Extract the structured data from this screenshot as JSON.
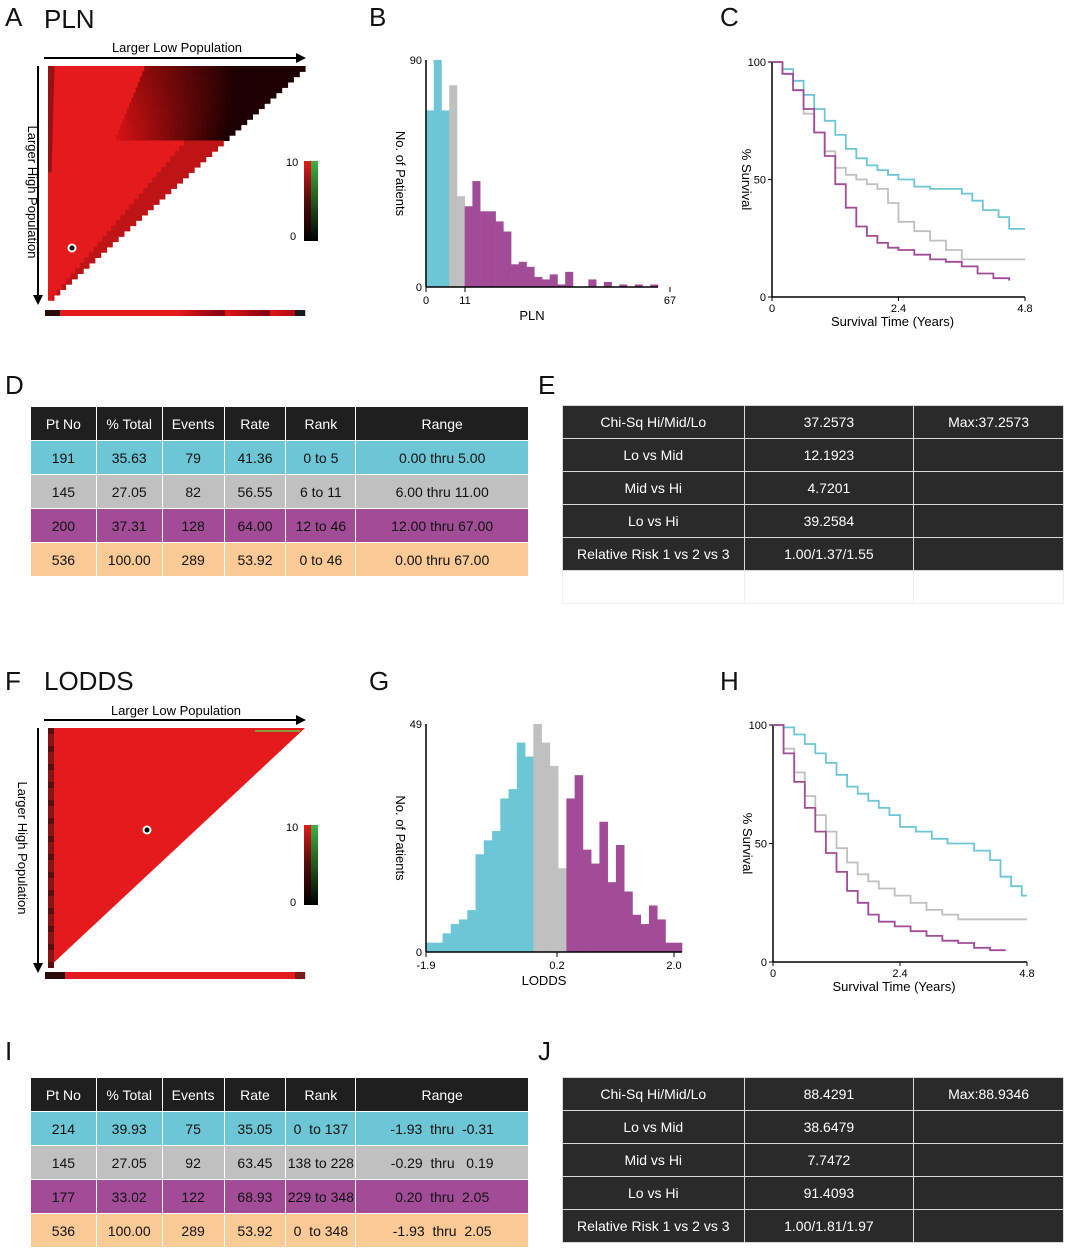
{
  "colors": {
    "lo": "#6cc6d6",
    "mid": "#c0c0c0",
    "hi": "#a24c98",
    "total": "#f9c996",
    "heat_red": "#e41a1c",
    "header": "#1f1f1f"
  },
  "panel_labels": {
    "A": "A",
    "B": "B",
    "C": "C",
    "D": "D",
    "E": "E",
    "F": "F",
    "G": "G",
    "H": "H",
    "I": "I",
    "J": "J"
  },
  "pln": {
    "title": "PLN",
    "heatmap": {
      "top_label": "Larger Low Population",
      "side_label": "Larger High Population",
      "scale_max": "10",
      "scale_min": "0"
    },
    "chart_data": {
      "type": "bar",
      "title": "",
      "xlabel": "PLN",
      "ylabel": "No. of Patients",
      "xticks": [
        "0",
        "11",
        "67"
      ],
      "yticks": [
        "0",
        "90"
      ],
      "ylim": [
        0,
        90
      ],
      "bins": [
        {
          "group": "lo",
          "value": 70
        },
        {
          "group": "lo",
          "value": 90
        },
        {
          "group": "lo",
          "value": 70
        },
        {
          "group": "mid",
          "value": 80
        },
        {
          "group": "mid",
          "value": 36
        },
        {
          "group": "hi",
          "value": 32
        },
        {
          "group": "hi",
          "value": 42
        },
        {
          "group": "hi",
          "value": 30
        },
        {
          "group": "hi",
          "value": 30
        },
        {
          "group": "hi",
          "value": 26
        },
        {
          "group": "hi",
          "value": 22
        },
        {
          "group": "hi",
          "value": 9
        },
        {
          "group": "hi",
          "value": 10
        },
        {
          "group": "hi",
          "value": 8
        },
        {
          "group": "hi",
          "value": 4
        },
        {
          "group": "hi",
          "value": 3
        },
        {
          "group": "hi",
          "value": 5
        },
        {
          "group": "hi",
          "value": 1
        },
        {
          "group": "hi",
          "value": 6
        },
        {
          "group": "hi",
          "value": 0
        },
        {
          "group": "hi",
          "value": 0
        },
        {
          "group": "hi",
          "value": 3
        },
        {
          "group": "hi",
          "value": 0
        },
        {
          "group": "hi",
          "value": 2
        },
        {
          "group": "hi",
          "value": 0
        },
        {
          "group": "hi",
          "value": 1
        },
        {
          "group": "hi",
          "value": 0
        },
        {
          "group": "hi",
          "value": 1
        },
        {
          "group": "hi",
          "value": 0
        },
        {
          "group": "hi",
          "value": 1
        }
      ]
    },
    "survival": {
      "type": "line",
      "xlabel": "Survival Time (Years)",
      "ylabel": "% Survival",
      "xticks": [
        "0",
        "2.4",
        "4.8"
      ],
      "yticks": [
        "0",
        "50",
        "100"
      ],
      "xlim": [
        0,
        4.8
      ],
      "ylim": [
        0,
        100
      ],
      "series": [
        {
          "name": "Lo",
          "color": "#6cc6d6",
          "points": [
            [
              0,
              100
            ],
            [
              0.2,
              97
            ],
            [
              0.4,
              92
            ],
            [
              0.6,
              86
            ],
            [
              0.8,
              80
            ],
            [
              1.0,
              75
            ],
            [
              1.2,
              69
            ],
            [
              1.4,
              63
            ],
            [
              1.6,
              59
            ],
            [
              1.8,
              56
            ],
            [
              2.0,
              54
            ],
            [
              2.2,
              52
            ],
            [
              2.4,
              50
            ],
            [
              2.7,
              47
            ],
            [
              3.0,
              46
            ],
            [
              3.3,
              46
            ],
            [
              3.6,
              44
            ],
            [
              3.8,
              41
            ],
            [
              4.0,
              37
            ],
            [
              4.3,
              34
            ],
            [
              4.5,
              29
            ],
            [
              4.8,
              29
            ]
          ]
        },
        {
          "name": "Mid",
          "color": "#c0c0c0",
          "points": [
            [
              0,
              100
            ],
            [
              0.2,
              95
            ],
            [
              0.4,
              88
            ],
            [
              0.6,
              78
            ],
            [
              0.8,
              70
            ],
            [
              1.0,
              62
            ],
            [
              1.2,
              55
            ],
            [
              1.4,
              52
            ],
            [
              1.6,
              50
            ],
            [
              1.8,
              48
            ],
            [
              2.0,
              46
            ],
            [
              2.2,
              40
            ],
            [
              2.4,
              32
            ],
            [
              2.7,
              28
            ],
            [
              3.0,
              24
            ],
            [
              3.3,
              20
            ],
            [
              3.6,
              16
            ],
            [
              4.0,
              16
            ],
            [
              4.3,
              16
            ],
            [
              4.8,
              16
            ]
          ]
        },
        {
          "name": "Hi",
          "color": "#a24c98",
          "points": [
            [
              0,
              100
            ],
            [
              0.2,
              95
            ],
            [
              0.4,
              88
            ],
            [
              0.6,
              80
            ],
            [
              0.8,
              70
            ],
            [
              1.0,
              60
            ],
            [
              1.2,
              48
            ],
            [
              1.4,
              38
            ],
            [
              1.6,
              30
            ],
            [
              1.8,
              26
            ],
            [
              2.0,
              23
            ],
            [
              2.2,
              21
            ],
            [
              2.4,
              20
            ],
            [
              2.7,
              18
            ],
            [
              3.0,
              16
            ],
            [
              3.3,
              15
            ],
            [
              3.6,
              13
            ],
            [
              3.9,
              10
            ],
            [
              4.2,
              8
            ],
            [
              4.5,
              7
            ]
          ]
        }
      ]
    },
    "table": {
      "headers": [
        "Pt No",
        "% Total",
        "Events",
        "Rate",
        "Rank",
        "Range"
      ],
      "rows": [
        {
          "group": "lo",
          "cells": [
            "191",
            "35.63",
            "79",
            "41.36",
            "0 to 5",
            "0.00 thru 5.00"
          ]
        },
        {
          "group": "mid",
          "cells": [
            "145",
            "27.05",
            "82",
            "56.55",
            "6 to 11",
            "6.00 thru 11.00"
          ]
        },
        {
          "group": "hi",
          "cells": [
            "200",
            "37.31",
            "128",
            "64.00",
            "12 to 46",
            "12.00 thru 67.00"
          ]
        },
        {
          "group": "total",
          "cells": [
            "536",
            "100.00",
            "289",
            "53.92",
            "0 to 46",
            "0.00 thru 67.00"
          ]
        }
      ]
    },
    "chisq": {
      "rows": [
        [
          "Chi-Sq Hi/Mid/Lo",
          "37.2573",
          "Max:37.2573"
        ],
        [
          "Lo vs Mid",
          "12.1923",
          ""
        ],
        [
          "Mid vs Hi",
          "4.7201",
          ""
        ],
        [
          "Lo vs Hi",
          "39.2584",
          ""
        ],
        [
          "Relative Risk 1 vs 2 vs 3",
          "1.00/1.37/1.55",
          ""
        ]
      ]
    }
  },
  "lodds": {
    "title": "LODDS",
    "heatmap": {
      "top_label": "Larger Low Population",
      "side_label": "Larger High Population",
      "scale_max": "10",
      "scale_min": "0"
    },
    "chart_data": {
      "type": "bar",
      "title": "",
      "xlabel": "LODDS",
      "ylabel": "No. of Patients",
      "xticks": [
        "-1.9",
        "0.2",
        "2.0"
      ],
      "yticks": [
        "0",
        "49"
      ],
      "ylim": [
        0,
        49
      ],
      "bins": [
        {
          "group": "lo",
          "value": 2
        },
        {
          "group": "lo",
          "value": 2
        },
        {
          "group": "lo",
          "value": 4
        },
        {
          "group": "lo",
          "value": 6
        },
        {
          "group": "lo",
          "value": 7
        },
        {
          "group": "lo",
          "value": 9
        },
        {
          "group": "lo",
          "value": 21
        },
        {
          "group": "lo",
          "value": 24
        },
        {
          "group": "lo",
          "value": 26
        },
        {
          "group": "lo",
          "value": 33
        },
        {
          "group": "lo",
          "value": 35
        },
        {
          "group": "lo",
          "value": 45
        },
        {
          "group": "lo",
          "value": 42
        },
        {
          "group": "mid",
          "value": 49
        },
        {
          "group": "mid",
          "value": 45
        },
        {
          "group": "mid",
          "value": 40
        },
        {
          "group": "mid",
          "value": 18
        },
        {
          "group": "hi",
          "value": 33
        },
        {
          "group": "hi",
          "value": 38
        },
        {
          "group": "hi",
          "value": 22
        },
        {
          "group": "hi",
          "value": 19
        },
        {
          "group": "hi",
          "value": 28
        },
        {
          "group": "hi",
          "value": 15
        },
        {
          "group": "hi",
          "value": 23
        },
        {
          "group": "hi",
          "value": 13
        },
        {
          "group": "hi",
          "value": 8
        },
        {
          "group": "hi",
          "value": 6
        },
        {
          "group": "hi",
          "value": 10
        },
        {
          "group": "hi",
          "value": 7
        },
        {
          "group": "hi",
          "value": 2
        },
        {
          "group": "hi",
          "value": 2
        }
      ]
    },
    "survival": {
      "type": "line",
      "xlabel": "Survival Time (Years)",
      "ylabel": "% Survival",
      "xticks": [
        "0",
        "2.4",
        "4.8"
      ],
      "yticks": [
        "0",
        "50",
        "100"
      ],
      "xlim": [
        0,
        4.8
      ],
      "ylim": [
        0,
        100
      ],
      "series": [
        {
          "name": "Lo",
          "color": "#6cc6d6",
          "points": [
            [
              0,
              100
            ],
            [
              0.2,
              99
            ],
            [
              0.4,
              96
            ],
            [
              0.6,
              92
            ],
            [
              0.8,
              88
            ],
            [
              1.0,
              84
            ],
            [
              1.2,
              79
            ],
            [
              1.4,
              74
            ],
            [
              1.6,
              71
            ],
            [
              1.8,
              68
            ],
            [
              2.0,
              65
            ],
            [
              2.2,
              62
            ],
            [
              2.4,
              57
            ],
            [
              2.7,
              55
            ],
            [
              3.0,
              52
            ],
            [
              3.3,
              50
            ],
            [
              3.6,
              50
            ],
            [
              3.8,
              47
            ],
            [
              4.1,
              43
            ],
            [
              4.3,
              36
            ],
            [
              4.5,
              32
            ],
            [
              4.7,
              28
            ],
            [
              4.8,
              28
            ]
          ]
        },
        {
          "name": "Mid",
          "color": "#c0c0c0",
          "points": [
            [
              0,
              100
            ],
            [
              0.2,
              90
            ],
            [
              0.4,
              80
            ],
            [
              0.6,
              70
            ],
            [
              0.8,
              62
            ],
            [
              1.0,
              55
            ],
            [
              1.2,
              48
            ],
            [
              1.4,
              42
            ],
            [
              1.6,
              37
            ],
            [
              1.8,
              34
            ],
            [
              2.0,
              31
            ],
            [
              2.3,
              28
            ],
            [
              2.6,
              25
            ],
            [
              2.9,
              22
            ],
            [
              3.2,
              20
            ],
            [
              3.5,
              18
            ],
            [
              3.8,
              18
            ],
            [
              4.2,
              18
            ],
            [
              4.8,
              18
            ]
          ]
        },
        {
          "name": "Hi",
          "color": "#a24c98",
          "points": [
            [
              0,
              100
            ],
            [
              0.2,
              88
            ],
            [
              0.4,
              76
            ],
            [
              0.6,
              65
            ],
            [
              0.8,
              55
            ],
            [
              1.0,
              46
            ],
            [
              1.2,
              38
            ],
            [
              1.4,
              30
            ],
            [
              1.6,
              25
            ],
            [
              1.8,
              20
            ],
            [
              2.0,
              17
            ],
            [
              2.3,
              15
            ],
            [
              2.6,
              13
            ],
            [
              2.9,
              11
            ],
            [
              3.2,
              9
            ],
            [
              3.5,
              8
            ],
            [
              3.8,
              6
            ],
            [
              4.1,
              5
            ],
            [
              4.4,
              5
            ]
          ]
        }
      ]
    },
    "table": {
      "headers": [
        "Pt No",
        "% Total",
        "Events",
        "Rate",
        "Rank",
        "Range"
      ],
      "rows": [
        {
          "group": "lo",
          "cells": [
            "214",
            "39.93",
            "75",
            "35.05",
            "0  to 137",
            "-1.93  thru  -0.31"
          ]
        },
        {
          "group": "mid",
          "cells": [
            "145",
            "27.05",
            "92",
            "63.45",
            "138 to 228",
            "-0.29  thru   0.19"
          ]
        },
        {
          "group": "hi",
          "cells": [
            "177",
            "33.02",
            "122",
            "68.93",
            "229 to 348",
            "0.20  thru  2.05"
          ]
        },
        {
          "group": "total",
          "cells": [
            "536",
            "100.00",
            "289",
            "53.92",
            "0  to 348",
            "-1.93  thru  2.05"
          ]
        }
      ]
    },
    "chisq": {
      "rows": [
        [
          "Chi-Sq Hi/Mid/Lo",
          "88.4291",
          "Max:88.9346"
        ],
        [
          "Lo vs Mid",
          "38.6479",
          ""
        ],
        [
          "Mid vs Hi",
          "7.7472",
          ""
        ],
        [
          "Lo vs Hi",
          "91.4093",
          ""
        ],
        [
          "Relative Risk 1 vs 2 vs 3",
          "1.00/1.81/1.97",
          ""
        ]
      ]
    }
  }
}
